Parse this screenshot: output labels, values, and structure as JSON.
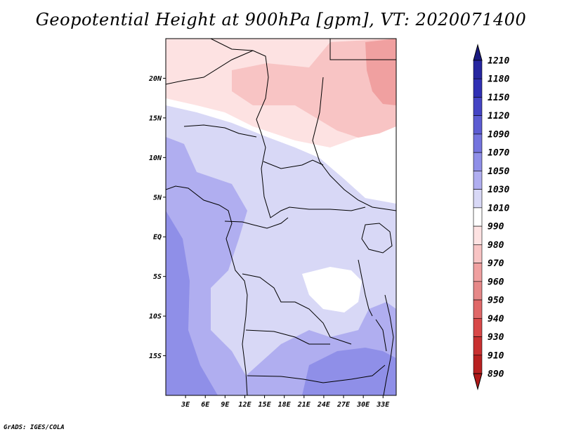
{
  "title": "Geopotential Height at 900hPa [gpm], VT: 2020071400",
  "credit": "GrADS: IGES/COLA",
  "map": {
    "lon_range": [
      0,
      35
    ],
    "lat_range": [
      -20,
      25
    ],
    "lon_ticks": [
      {
        "value": 3,
        "label": "3E"
      },
      {
        "value": 6,
        "label": "6E"
      },
      {
        "value": 9,
        "label": "9E"
      },
      {
        "value": 12,
        "label": "12E"
      },
      {
        "value": 15,
        "label": "15E"
      },
      {
        "value": 18,
        "label": "18E"
      },
      {
        "value": 21,
        "label": "21E"
      },
      {
        "value": 24,
        "label": "24E"
      },
      {
        "value": 27,
        "label": "27E"
      },
      {
        "value": 30,
        "label": "30E"
      },
      {
        "value": 33,
        "label": "33E"
      }
    ],
    "lat_ticks": [
      {
        "value": 20,
        "label": "20N"
      },
      {
        "value": 15,
        "label": "15N"
      },
      {
        "value": 10,
        "label": "10N"
      },
      {
        "value": 5,
        "label": "5N"
      },
      {
        "value": 0,
        "label": "EQ"
      },
      {
        "value": -5,
        "label": "5S"
      },
      {
        "value": -10,
        "label": "10S"
      },
      {
        "value": -15,
        "label": "15S"
      }
    ]
  },
  "colorbar": {
    "levels": [
      {
        "label": "1210",
        "color": "#1c1c8c"
      },
      {
        "label": "1180",
        "color": "#26269f"
      },
      {
        "label": "1150",
        "color": "#3030b4"
      },
      {
        "label": "1120",
        "color": "#4444c4"
      },
      {
        "label": "1090",
        "color": "#5c5cd2"
      },
      {
        "label": "1070",
        "color": "#7474de"
      },
      {
        "label": "1050",
        "color": "#8f8fe8"
      },
      {
        "label": "1030",
        "color": "#b0aef0"
      },
      {
        "label": "1010",
        "color": "#d8d8f6"
      },
      {
        "label": "990",
        "color": "#ffffff"
      },
      {
        "label": "980",
        "color": "#fde2e2"
      },
      {
        "label": "970",
        "color": "#f8c4c4"
      },
      {
        "label": "960",
        "color": "#f0a0a0"
      },
      {
        "label": "950",
        "color": "#e68888"
      },
      {
        "label": "940",
        "color": "#e06868"
      },
      {
        "label": "930",
        "color": "#d84848"
      },
      {
        "label": "910",
        "color": "#c83030"
      },
      {
        "label": "890",
        "color": "#b82020"
      }
    ],
    "top_arrow_color": "#1a1a80",
    "bottom_arrow_color": "#b01818"
  }
}
